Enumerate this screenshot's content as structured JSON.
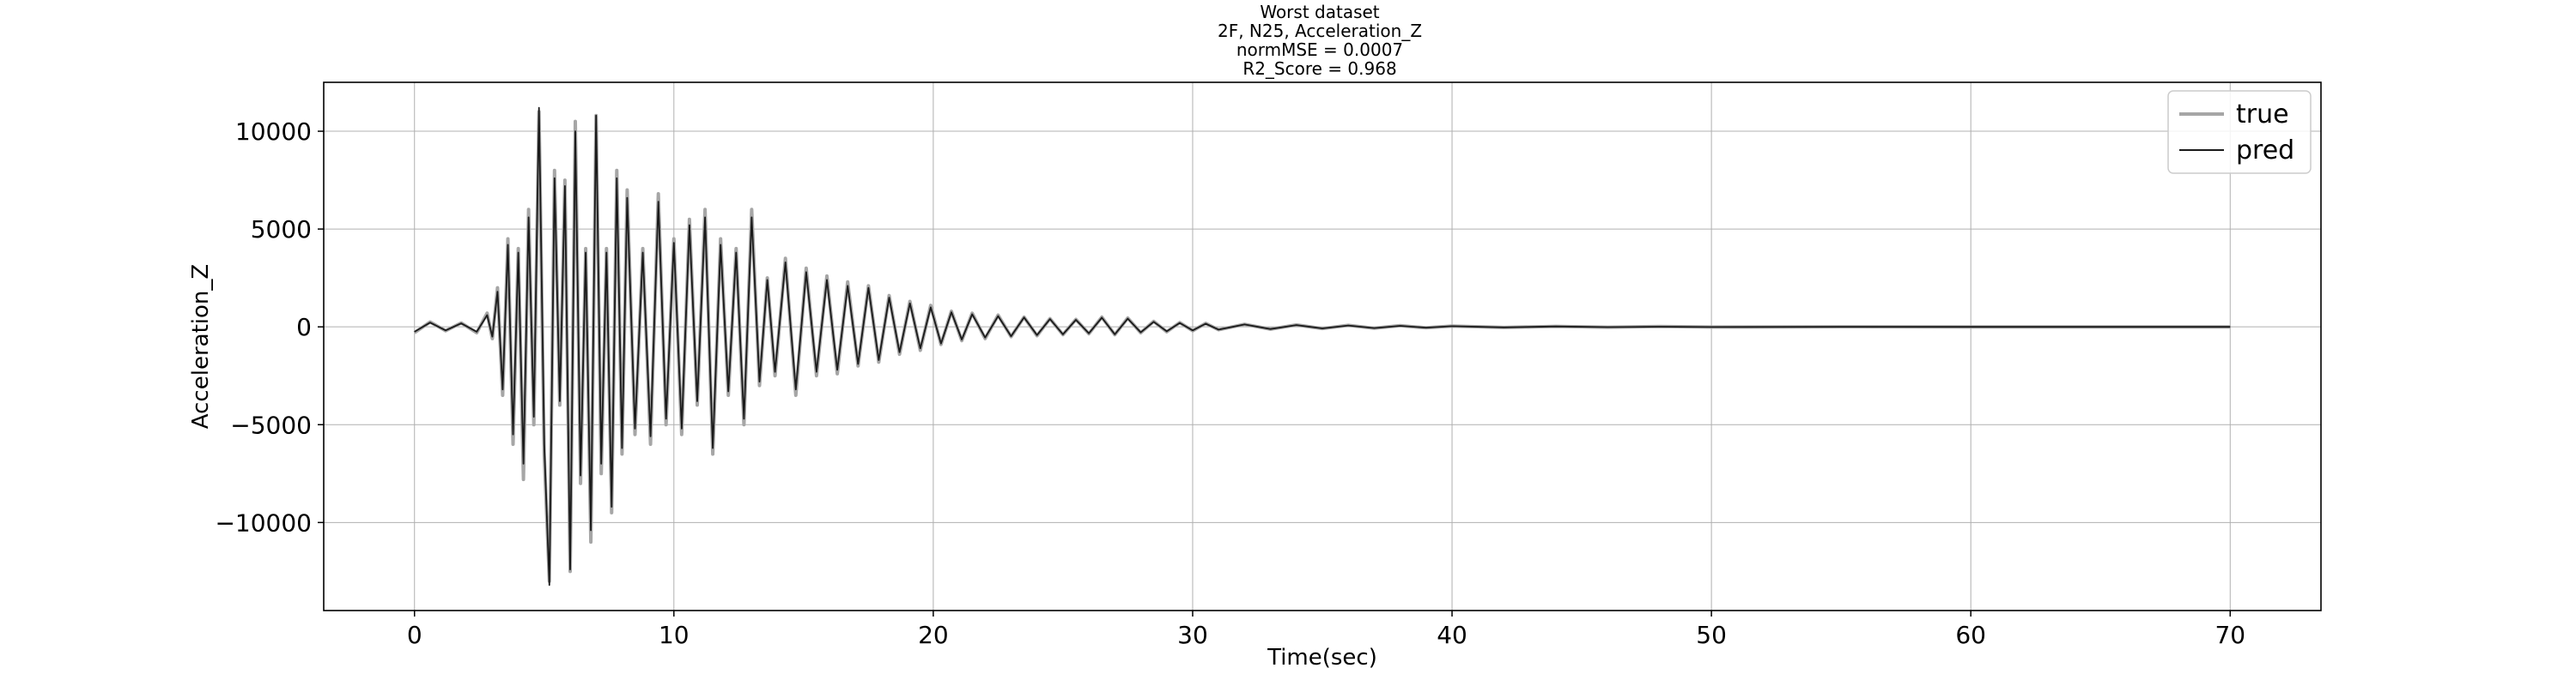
{
  "chart_data": {
    "type": "line",
    "title_lines": [
      "Worst dataset",
      "2F, N25, Acceleration_Z",
      "normMSE = 0.0007",
      "R2_Score = 0.968"
    ],
    "xlabel": "Time(sec)",
    "ylabel": "Acceleration_Z",
    "xlim": [
      -3.5,
      73.5
    ],
    "ylim": [
      -14500,
      12500
    ],
    "xticks": [
      0,
      10,
      20,
      30,
      40,
      50,
      60,
      70
    ],
    "xtick_labels": [
      "0",
      "10",
      "20",
      "30",
      "40",
      "50",
      "60",
      "70"
    ],
    "yticks": [
      -10000,
      -5000,
      0,
      5000,
      10000
    ],
    "ytick_labels": [
      "−10000",
      "−5000",
      "0",
      "5000",
      "10000"
    ],
    "grid": true,
    "legend_position": "top-right",
    "series": [
      {
        "name": "true",
        "color": "#a6a6a6",
        "x": [
          0.0,
          0.6,
          1.2,
          1.8,
          2.4,
          2.8,
          3.0,
          3.2,
          3.4,
          3.6,
          3.8,
          4.0,
          4.2,
          4.4,
          4.6,
          4.8,
          5.0,
          5.2,
          5.4,
          5.6,
          5.8,
          6.0,
          6.2,
          6.4,
          6.6,
          6.8,
          7.0,
          7.2,
          7.4,
          7.6,
          7.8,
          8.0,
          8.2,
          8.5,
          8.8,
          9.1,
          9.4,
          9.7,
          10.0,
          10.3,
          10.6,
          10.9,
          11.2,
          11.5,
          11.8,
          12.1,
          12.4,
          12.7,
          13.0,
          13.3,
          13.6,
          13.9,
          14.3,
          14.7,
          15.1,
          15.5,
          15.9,
          16.3,
          16.7,
          17.1,
          17.5,
          17.9,
          18.3,
          18.7,
          19.1,
          19.5,
          19.9,
          20.3,
          20.7,
          21.1,
          21.5,
          22.0,
          22.5,
          23.0,
          23.5,
          24.0,
          24.5,
          25.0,
          25.5,
          26.0,
          26.5,
          27.0,
          27.5,
          28.0,
          28.5,
          29.0,
          29.5,
          30.0,
          30.5,
          31.0,
          32.0,
          33.0,
          34.0,
          35.0,
          36.0,
          37.0,
          38.0,
          39.0,
          40.0,
          42.0,
          44.0,
          46.0,
          48.0,
          50.0,
          55.0,
          60.0,
          65.0,
          70.0
        ],
        "y": [
          -300,
          250,
          -200,
          200,
          -300,
          700,
          -600,
          2000,
          -3500,
          4500,
          -6000,
          4000,
          -7800,
          6000,
          -5000,
          11000,
          -6500,
          -13000,
          8000,
          -4000,
          7500,
          -12500,
          10500,
          -8000,
          4000,
          -11000,
          10800,
          -7500,
          4000,
          -9500,
          8000,
          -6500,
          7000,
          -5500,
          4000,
          -6000,
          6800,
          -5000,
          4500,
          -5500,
          5500,
          -4000,
          6000,
          -6500,
          4500,
          -3500,
          4000,
          -5000,
          6000,
          -3000,
          2500,
          -2500,
          3500,
          -3500,
          3000,
          -2500,
          2600,
          -2400,
          2300,
          -2000,
          2100,
          -1800,
          1600,
          -1400,
          1300,
          -1200,
          1100,
          -900,
          800,
          -700,
          700,
          -600,
          600,
          -500,
          500,
          -450,
          420,
          -400,
          380,
          -350,
          500,
          -400,
          450,
          -300,
          280,
          -250,
          220,
          -200,
          180,
          -150,
          130,
          -120,
          100,
          -90,
          80,
          -70,
          60,
          -50,
          40,
          -30,
          25,
          -20,
          15,
          -10,
          5,
          0,
          0,
          0
        ]
      },
      {
        "name": "pred",
        "color": "#1a1a1a",
        "x": [
          0.0,
          0.6,
          1.2,
          1.8,
          2.4,
          2.8,
          3.0,
          3.2,
          3.4,
          3.6,
          3.8,
          4.0,
          4.2,
          4.4,
          4.6,
          4.8,
          5.0,
          5.2,
          5.4,
          5.6,
          5.8,
          6.0,
          6.2,
          6.4,
          6.6,
          6.8,
          7.0,
          7.2,
          7.4,
          7.6,
          7.8,
          8.0,
          8.2,
          8.5,
          8.8,
          9.1,
          9.4,
          9.7,
          10.0,
          10.3,
          10.6,
          10.9,
          11.2,
          11.5,
          11.8,
          12.1,
          12.4,
          12.7,
          13.0,
          13.3,
          13.6,
          13.9,
          14.3,
          14.7,
          15.1,
          15.5,
          15.9,
          16.3,
          16.7,
          17.1,
          17.5,
          17.9,
          18.3,
          18.7,
          19.1,
          19.5,
          19.9,
          20.3,
          20.7,
          21.1,
          21.5,
          22.0,
          22.5,
          23.0,
          23.5,
          24.0,
          24.5,
          25.0,
          25.5,
          26.0,
          26.5,
          27.0,
          27.5,
          28.0,
          28.5,
          29.0,
          29.5,
          30.0,
          30.5,
          31.0,
          32.0,
          33.0,
          34.0,
          35.0,
          36.0,
          37.0,
          38.0,
          39.0,
          40.0,
          42.0,
          44.0,
          46.0,
          48.0,
          50.0,
          55.0,
          60.0,
          65.0,
          70.0
        ],
        "y": [
          -250,
          220,
          -180,
          180,
          -250,
          600,
          -500,
          1800,
          -3200,
          4200,
          -5500,
          3800,
          -7000,
          5600,
          -4600,
          11200,
          -6000,
          -13200,
          7600,
          -3800,
          7200,
          -12400,
          10000,
          -7600,
          3800,
          -10400,
          10800,
          -7000,
          3800,
          -9200,
          7600,
          -6200,
          6600,
          -5200,
          3800,
          -5600,
          6400,
          -4700,
          4300,
          -5200,
          5200,
          -3800,
          5600,
          -6200,
          4200,
          -3300,
          3800,
          -4700,
          5600,
          -2800,
          2400,
          -2300,
          3300,
          -3200,
          2800,
          -2300,
          2400,
          -2200,
          2100,
          -1900,
          2000,
          -1700,
          1500,
          -1300,
          1200,
          -1100,
          1000,
          -850,
          750,
          -650,
          650,
          -550,
          550,
          -480,
          480,
          -420,
          400,
          -380,
          360,
          -330,
          470,
          -380,
          420,
          -280,
          260,
          -230,
          200,
          -180,
          160,
          -140,
          120,
          -110,
          90,
          -80,
          70,
          -60,
          50,
          -40,
          35,
          -25,
          20,
          -15,
          10,
          -8,
          4,
          0,
          0,
          0
        ]
      }
    ]
  }
}
